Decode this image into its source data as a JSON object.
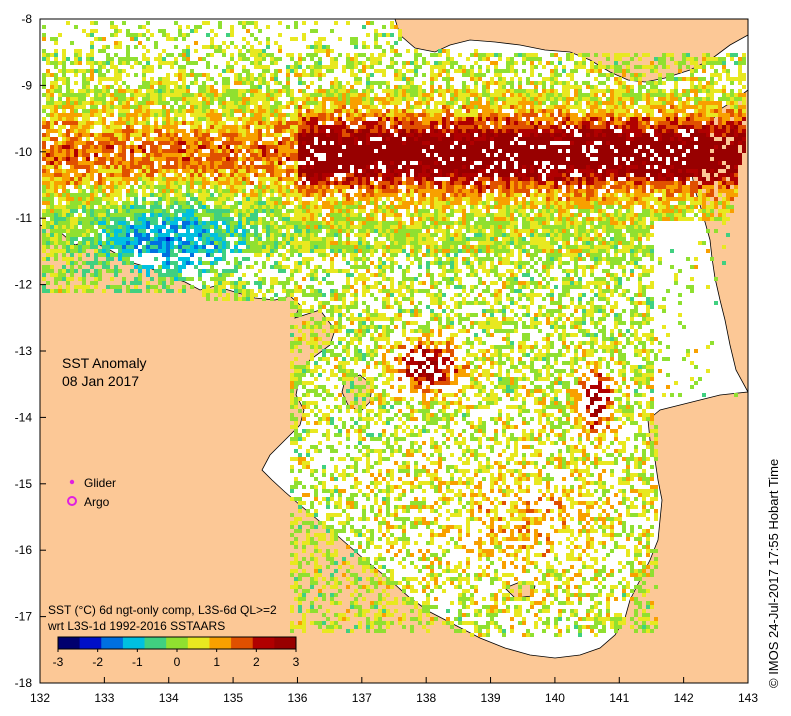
{
  "title": {
    "line1": "SST Anomaly",
    "line2": "08 Jan 2017"
  },
  "legend": {
    "glider_label": "Glider",
    "argo_label": "Argo",
    "glider_color": "#e020e0",
    "argo_color": "#e020e0"
  },
  "colorbar": {
    "caption_line1": "SST (°C) 6d ngt-only comp, L3S-6d QL>=2",
    "caption_line2": "wrt L3S-1d 1992-2016 SSTAARS",
    "min": -3,
    "max": 3,
    "tick_labels": [
      "-3",
      "-2",
      "-1",
      "0",
      "1",
      "2",
      "3"
    ],
    "colors": [
      "#00006e",
      "#0010c8",
      "#0070e0",
      "#00c0e0",
      "#40d080",
      "#90e030",
      "#e8e820",
      "#f8a000",
      "#e05000",
      "#b00000",
      "#980000"
    ]
  },
  "credit": "© IMOS 24-Jul-2017 17:55 Hobart Time",
  "axes": {
    "x_ticks": [
      "132",
      "133",
      "134",
      "135",
      "136",
      "137",
      "138",
      "139",
      "140",
      "141",
      "142",
      "143"
    ],
    "y_ticks": [
      "-8",
      "-9",
      "-10",
      "-11",
      "-12",
      "-13",
      "-14",
      "-15",
      "-16",
      "-17",
      "-18"
    ],
    "lon_range": [
      132,
      143
    ],
    "lat_range": [
      -18,
      -8
    ]
  },
  "colors": {
    "land": "#fcc896",
    "sea": "#ffffff",
    "coast": "#000000"
  }
}
